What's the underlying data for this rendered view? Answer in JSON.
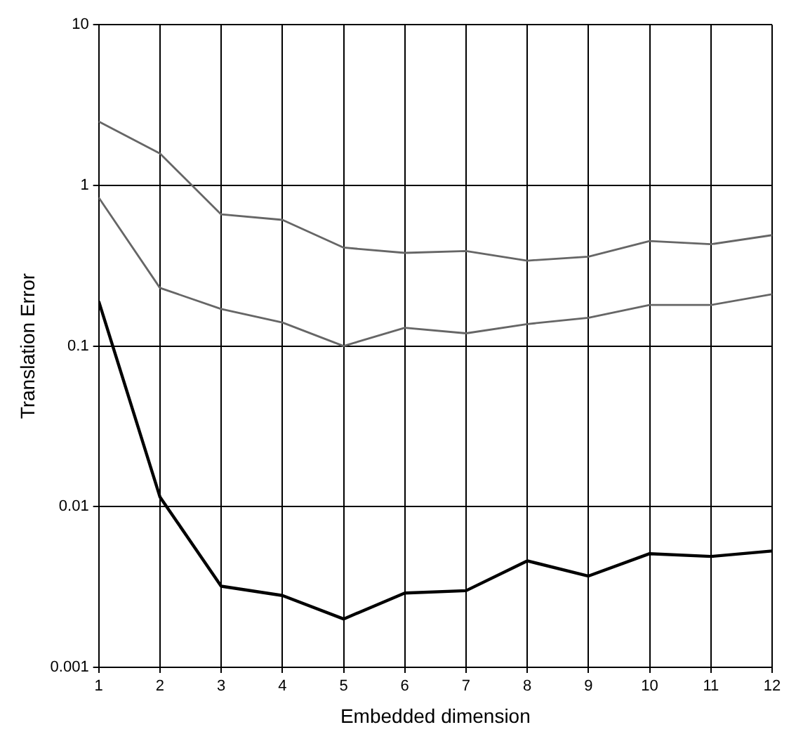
{
  "chart_data": {
    "type": "line",
    "xlabel": "Embedded dimension",
    "ylabel": "Translation Error",
    "x": [
      1,
      2,
      3,
      4,
      5,
      6,
      7,
      8,
      9,
      10,
      11,
      12
    ],
    "series": [
      {
        "color": "#666666",
        "values": [
          2.5,
          1.58,
          0.66,
          0.61,
          0.41,
          0.38,
          0.39,
          0.34,
          0.36,
          0.45,
          0.43,
          0.49
        ]
      },
      {
        "color": "#666666",
        "values": [
          0.84,
          0.23,
          0.17,
          0.14,
          0.1,
          0.13,
          0.12,
          0.137,
          0.15,
          0.18,
          0.18,
          0.21
        ]
      },
      {
        "color": "#000000",
        "values": [
          0.19,
          0.0115,
          0.0032,
          0.0028,
          0.002,
          0.0029,
          0.003,
          0.0046,
          0.0037,
          0.0051,
          0.0049,
          0.0053
        ]
      }
    ],
    "xlim": [
      1,
      12
    ],
    "xticks": [
      1,
      2,
      3,
      4,
      5,
      6,
      7,
      8,
      9,
      10,
      11,
      12
    ],
    "ylim": [
      0.001,
      10
    ],
    "yticks": [
      0.001,
      0.01,
      0.1,
      1,
      10
    ],
    "log": "y",
    "grid": true,
    "legend": false,
    "marker": "none",
    "line_style": "solid"
  }
}
